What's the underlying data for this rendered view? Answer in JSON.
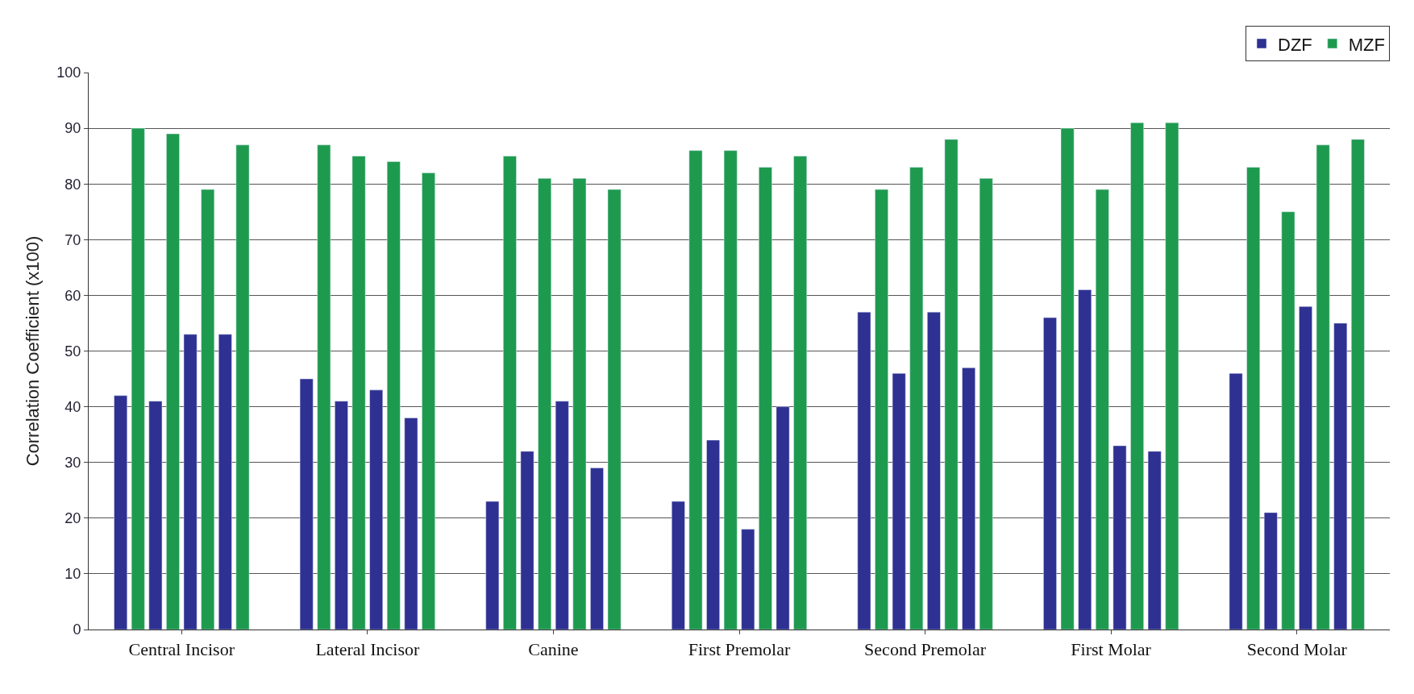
{
  "chart_data": {
    "type": "bar",
    "ylabel": "Correlation Coefficient (x100)",
    "categories": [
      "Central Incisor",
      "Lateral Incisor",
      "Canine",
      "First Premolar",
      "Second Premolar",
      "First Molar",
      "Second Molar"
    ],
    "series": [
      {
        "name": "DZF",
        "color": "#2e3192",
        "values": [
          42,
          45,
          23,
          23,
          57,
          56,
          46
        ]
      },
      {
        "name": "MZF",
        "color": "#1e9a4f",
        "values": [
          90,
          87,
          85,
          86,
          79,
          90,
          83
        ]
      },
      {
        "color": "#2e3192",
        "values": [
          41,
          41,
          32,
          34,
          46,
          61,
          21
        ]
      },
      {
        "color": "#1e9a4f",
        "values": [
          89,
          85,
          81,
          86,
          83,
          79,
          75
        ]
      },
      {
        "color": "#2e3192",
        "values": [
          53,
          43,
          41,
          18,
          57,
          33,
          58
        ]
      },
      {
        "color": "#1e9a4f",
        "values": [
          79,
          84,
          81,
          83,
          88,
          91,
          87
        ]
      },
      {
        "color": "#2e3192",
        "values": [
          53,
          38,
          29,
          40,
          47,
          32,
          55
        ]
      },
      {
        "color": "#1e9a4f",
        "values": [
          87,
          82,
          79,
          85,
          81,
          91,
          88
        ]
      }
    ],
    "ylim": [
      0,
      100
    ],
    "yticks": [
      0,
      10,
      20,
      30,
      40,
      50,
      60,
      70,
      80,
      90,
      100
    ],
    "grid": "y",
    "legend": "top right"
  }
}
